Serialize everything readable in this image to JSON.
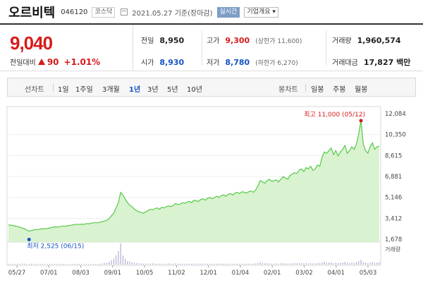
{
  "stock": {
    "name": "오르비텍",
    "code": "046120",
    "market": "코스닥",
    "date": "2021.05.27 기준(장마감)",
    "live_label": "실시간",
    "company_btn": "기업개요 ▾"
  },
  "quote": {
    "price": "9,040",
    "change_label": "전일대비",
    "change": "90",
    "change_pct": "+1.01%",
    "prev_label": "전일",
    "prev": "8,950",
    "high_label": "고가",
    "high": "9,300",
    "upper_limit": "(상한가 11,600)",
    "volume_label": "거래량",
    "volume": "1,960,574",
    "open_label": "시가",
    "open": "8,930",
    "low_label": "저가",
    "low": "8,780",
    "lower_limit": "(하한가 6,270)",
    "amount_label": "거래대금",
    "amount": "17,827 백만"
  },
  "periods": {
    "line_label": "선차트",
    "items": [
      "1일",
      "1주일",
      "3개월",
      "1년",
      "3년",
      "5년",
      "10년"
    ],
    "active": "1년",
    "candle_label": "봉차트",
    "candle_items": [
      "일봉",
      "주봉",
      "월봉"
    ]
  },
  "colors": {
    "up": "#d61b1b",
    "down": "#1753c6",
    "line": "#56c94a",
    "area": "#d9f2cf"
  },
  "chart_data": {
    "type": "area",
    "y_ticks": [
      "12,084",
      "10,350",
      "8,615",
      "6,881",
      "5,146",
      "3,412",
      "1,678"
    ],
    "ylim": [
      1678,
      12084
    ],
    "x_ticks": [
      "05/27",
      "07/01",
      "08/03",
      "09/01",
      "10/05",
      "11/02",
      "12/01",
      "01/04",
      "02/01",
      "03/02",
      "04/01",
      "05/03"
    ],
    "max_label": "최고 11,000 (05/12)",
    "min_label": "최저 2,525 (06/15)",
    "volume_label": "거래량",
    "series": [
      {
        "values": [
          3000,
          2980,
          2950,
          2900,
          2880,
          2820,
          2750,
          2700,
          2600,
          2525,
          2560,
          2600,
          2650,
          2640,
          2680,
          2700,
          2720,
          2700,
          2760,
          2800,
          2850,
          2820,
          2860,
          2880,
          2920,
          2900,
          2940,
          2960,
          3000,
          3020,
          3050,
          3020,
          3060,
          3040,
          3100,
          3080,
          3120,
          3150,
          3180,
          3160,
          3200,
          3250,
          3300,
          3350,
          3500,
          3700,
          3900,
          4300,
          4700,
          5500,
          5300,
          5000,
          4700,
          4500,
          4400,
          4200,
          4100,
          4000,
          3950,
          3900,
          4000,
          4100,
          4200,
          4150,
          4250,
          4300,
          4200,
          4350,
          4300,
          4400,
          4450,
          4400,
          4500,
          4650,
          4550,
          4600,
          4700,
          4650,
          4750,
          4800,
          4700,
          4900,
          4850,
          4800,
          4950,
          5000,
          4900,
          5050,
          5100,
          5000,
          5100,
          5200,
          5100,
          5250,
          5300,
          5200,
          5350,
          5400,
          5300,
          5450,
          5500,
          5400,
          5550,
          5500,
          5450,
          5550,
          5600,
          5500,
          5700,
          6000,
          6400,
          6300,
          6200,
          6400,
          6500,
          6350,
          6400,
          6450,
          6300,
          6500,
          6700,
          6600,
          6500,
          6800,
          6900,
          7000,
          6950,
          7200,
          7300,
          7100,
          7400,
          7300,
          7500,
          7200,
          7300,
          7600,
          7500,
          8200,
          8600,
          8500,
          8700,
          8900,
          8400,
          8700,
          8300,
          8600,
          8800,
          9100,
          8500,
          8700,
          9000,
          8800,
          9200,
          10000,
          11000,
          9200,
          8700,
          8500,
          9000,
          9300,
          8800,
          9000,
          9040
        ]
      }
    ],
    "volume": [
      2,
      3,
      2,
      2,
      3,
      2,
      4,
      3,
      2,
      2,
      3,
      2,
      2,
      3,
      2,
      2,
      2,
      3,
      2,
      2,
      3,
      2,
      2,
      2,
      3,
      2,
      2,
      2,
      2,
      3,
      2,
      2,
      2,
      2,
      3,
      2,
      2,
      2,
      2,
      2,
      3,
      4,
      5,
      6,
      10,
      14,
      20,
      30,
      45,
      70,
      30,
      20,
      12,
      10,
      8,
      6,
      5,
      4,
      4,
      3,
      4,
      3,
      3,
      4,
      3,
      3,
      3,
      3,
      3,
      3,
      4,
      3,
      3,
      4,
      3,
      3,
      3,
      3,
      3,
      3,
      3,
      4,
      3,
      3,
      3,
      3,
      3,
      3,
      3,
      3,
      3,
      3,
      3,
      3,
      3,
      3,
      3,
      3,
      3,
      3,
      3,
      3,
      3,
      3,
      3,
      3,
      3,
      3,
      4,
      6,
      8,
      5,
      4,
      5,
      4,
      3,
      3,
      4,
      3,
      4,
      5,
      4,
      3,
      4,
      4,
      5,
      4,
      5,
      5,
      4,
      5,
      4,
      5,
      4,
      4,
      5,
      5,
      8,
      10,
      6,
      7,
      8,
      5,
      6,
      5,
      6,
      7,
      9,
      6,
      5,
      7,
      6,
      8,
      12,
      16,
      8,
      6,
      5,
      7,
      8,
      6,
      7,
      8
    ]
  }
}
